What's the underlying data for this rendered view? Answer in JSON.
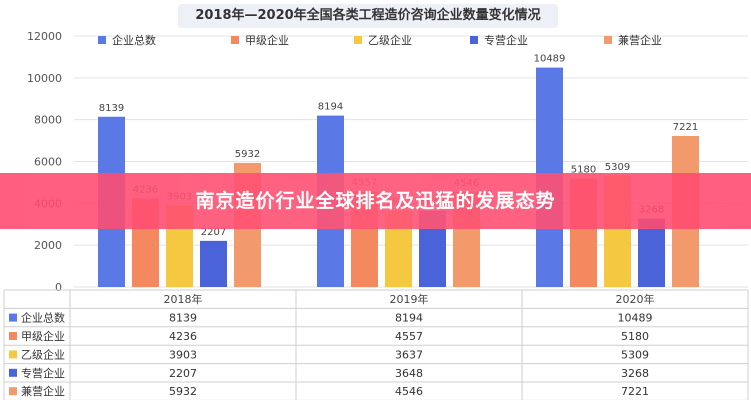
{
  "chart_data": {
    "type": "bar",
    "title": "2018年—2020年全国各类工程造价咨询企业数量变化情况",
    "categories": [
      "2018年",
      "2019年",
      "2020年"
    ],
    "series": [
      {
        "name": "企业总数",
        "color": "#5a79e6",
        "values": [
          8139,
          8194,
          10489
        ]
      },
      {
        "name": "甲级企业",
        "color": "#f4895f",
        "values": [
          4236,
          4557,
          5180
        ]
      },
      {
        "name": "乙级企业",
        "color": "#f5c842",
        "values": [
          3903,
          3637,
          5309
        ]
      },
      {
        "name": "专营企业",
        "color": "#4a63d8",
        "values": [
          2207,
          3648,
          3268
        ]
      },
      {
        "name": "兼营企业",
        "color": "#f39a6c",
        "values": [
          5932,
          4546,
          7221
        ]
      }
    ],
    "yticks": [
      0,
      2000,
      4000,
      6000,
      8000,
      10000,
      12000
    ],
    "ylim": [
      0,
      12000
    ],
    "grid": true,
    "legend": "top",
    "data_table": true
  },
  "banner": {
    "text": "南京造价行业全球排名及迅猛的发展态势",
    "color": "#ff4a6e"
  }
}
